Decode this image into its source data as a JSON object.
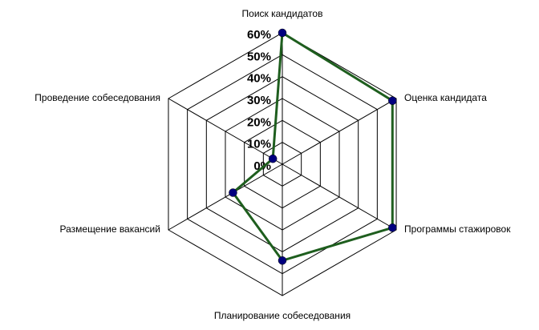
{
  "chart_data": {
    "type": "radar",
    "categories": [
      "Поиск кандидатов",
      "Оценка кандидата",
      "Программы стажировок",
      "Планирование собеседования",
      "Размещение вакансий",
      "Проведение собеседования"
    ],
    "series": [
      {
        "color": "#1e5e1e",
        "marker_color": "#00007f",
        "values": [
          60,
          58,
          58,
          44,
          26,
          5
        ]
      }
    ],
    "ylim": [
      0,
      60
    ],
    "yticks": [
      {
        "value": 0,
        "label": "0%"
      },
      {
        "value": 10,
        "label": "10%"
      },
      {
        "value": 20,
        "label": "20%"
      },
      {
        "value": 30,
        "label": "30%"
      },
      {
        "value": 40,
        "label": "40%"
      },
      {
        "value": 50,
        "label": "50%"
      },
      {
        "value": 60,
        "label": "60%"
      }
    ],
    "grid": true
  }
}
